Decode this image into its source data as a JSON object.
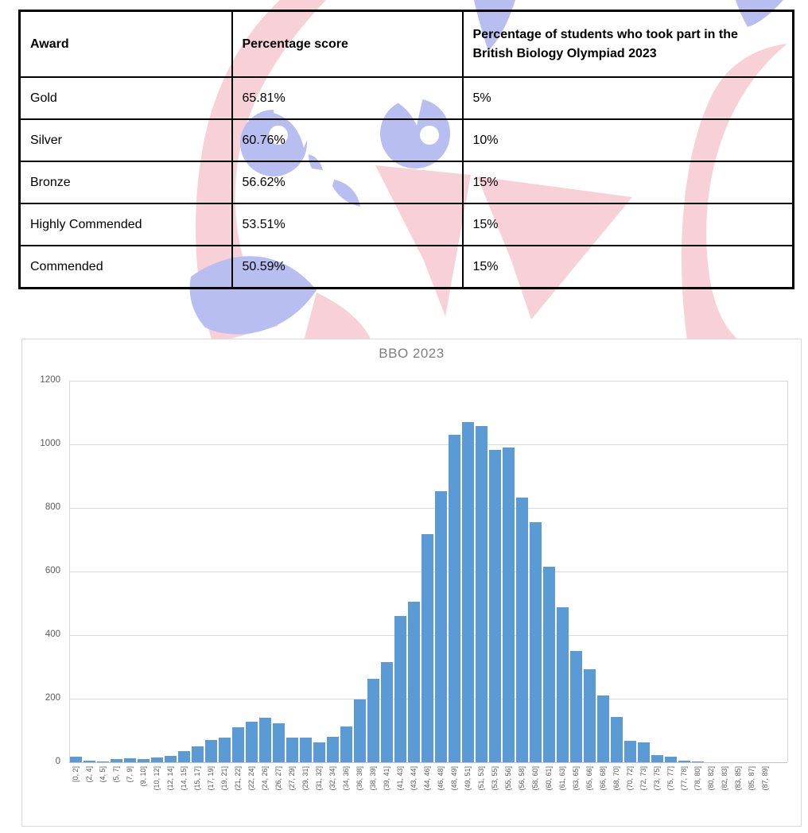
{
  "table": {
    "headers": [
      "Award",
      "Percentage score",
      "Percentage of students who took part in the British Biology Olympiad 2023"
    ],
    "rows": [
      [
        "Gold",
        "65.81%",
        "5%"
      ],
      [
        "Silver",
        "60.76%",
        "10%"
      ],
      [
        "Bronze",
        "56.62%",
        "15%"
      ],
      [
        "Highly Commended",
        "53.51%",
        "15%"
      ],
      [
        "Commended",
        "50.59%",
        "15%"
      ]
    ]
  },
  "chart_data": {
    "type": "bar",
    "title": "BBO 2023",
    "xlabel": "",
    "ylabel": "",
    "ylim": [
      0,
      1200
    ],
    "yticks": [
      0,
      200,
      400,
      600,
      800,
      1000,
      1200
    ],
    "grid": true,
    "legend": false,
    "bar_color": "#5b9bd5",
    "gridline_color": "#d9d9d9",
    "title_color": "#7f7f7f",
    "axis_label_color": "#595959",
    "categories": [
      "[0, 2]",
      "(2, 4]",
      "(4, 5]",
      "(5, 7]",
      "(7, 9]",
      "(9, 10]",
      "(10, 12]",
      "(12, 14]",
      "(14, 15]",
      "(15, 17]",
      "(17, 19]",
      "(19, 21]",
      "(21, 22]",
      "(22, 24]",
      "(24, 26]",
      "(26, 27]",
      "(27, 29]",
      "(29, 31]",
      "(31, 32]",
      "(32, 34]",
      "(34, 36]",
      "(36, 38]",
      "(38, 39]",
      "(39, 41]",
      "(41, 43]",
      "(43, 44]",
      "(44, 46]",
      "(46, 48]",
      "(48, 49]",
      "(49, 51]",
      "(51, 53]",
      "(53, 55]",
      "(55, 56]",
      "(56, 58]",
      "(58, 60]",
      "(60, 61]",
      "(61, 63]",
      "(63, 65]",
      "(65, 66]",
      "(66, 68]",
      "(68, 70]",
      "(70, 72]",
      "(72, 73]",
      "(73, 75]",
      "(75, 77]",
      "(77, 78]",
      "(78, 80]",
      "(80, 82]",
      "(82, 83]",
      "(83, 85]",
      "(85, 87]",
      "(87, 89]"
    ],
    "values": [
      18,
      4,
      2,
      9,
      12,
      10,
      14,
      19,
      36,
      50,
      70,
      77,
      110,
      127,
      140,
      122,
      78,
      78,
      63,
      80,
      112,
      198,
      263,
      316,
      460,
      505,
      718,
      852,
      1029,
      1070,
      1057,
      983,
      989,
      833,
      754,
      615,
      487,
      350,
      293,
      210,
      142,
      67,
      62,
      22,
      17,
      5,
      2,
      0,
      0,
      0,
      0,
      0
    ]
  },
  "watermark": {
    "name": "owl-logo",
    "pink": "#f8d0d8",
    "blue": "#b9bef1"
  }
}
